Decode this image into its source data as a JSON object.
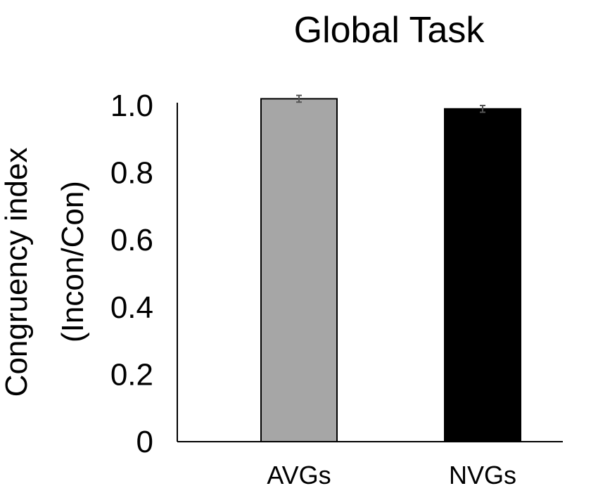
{
  "chart_data": {
    "type": "bar",
    "title": "Global Task",
    "ylabel_line1": "Congruency index",
    "ylabel_line2": "(Incon/Con)",
    "xlabel": "",
    "categories": [
      "AVGs",
      "NVGs"
    ],
    "values": [
      1.02,
      0.99
    ],
    "errors": [
      0.01,
      0.01
    ],
    "ylim": [
      0,
      1.0
    ],
    "yticks": [
      0,
      0.2,
      0.4,
      0.6,
      0.8,
      1.0
    ],
    "ytick_labels": [
      "0",
      "0.2",
      "0.4",
      "0.6",
      "0.8",
      "1.0"
    ],
    "grid": false,
    "legend": "none",
    "colors": {
      "bars": [
        "#a6a6a6",
        "#000000"
      ],
      "bar_stroke": "#000000",
      "error_bar": "#555555",
      "axis": "#000000"
    }
  }
}
